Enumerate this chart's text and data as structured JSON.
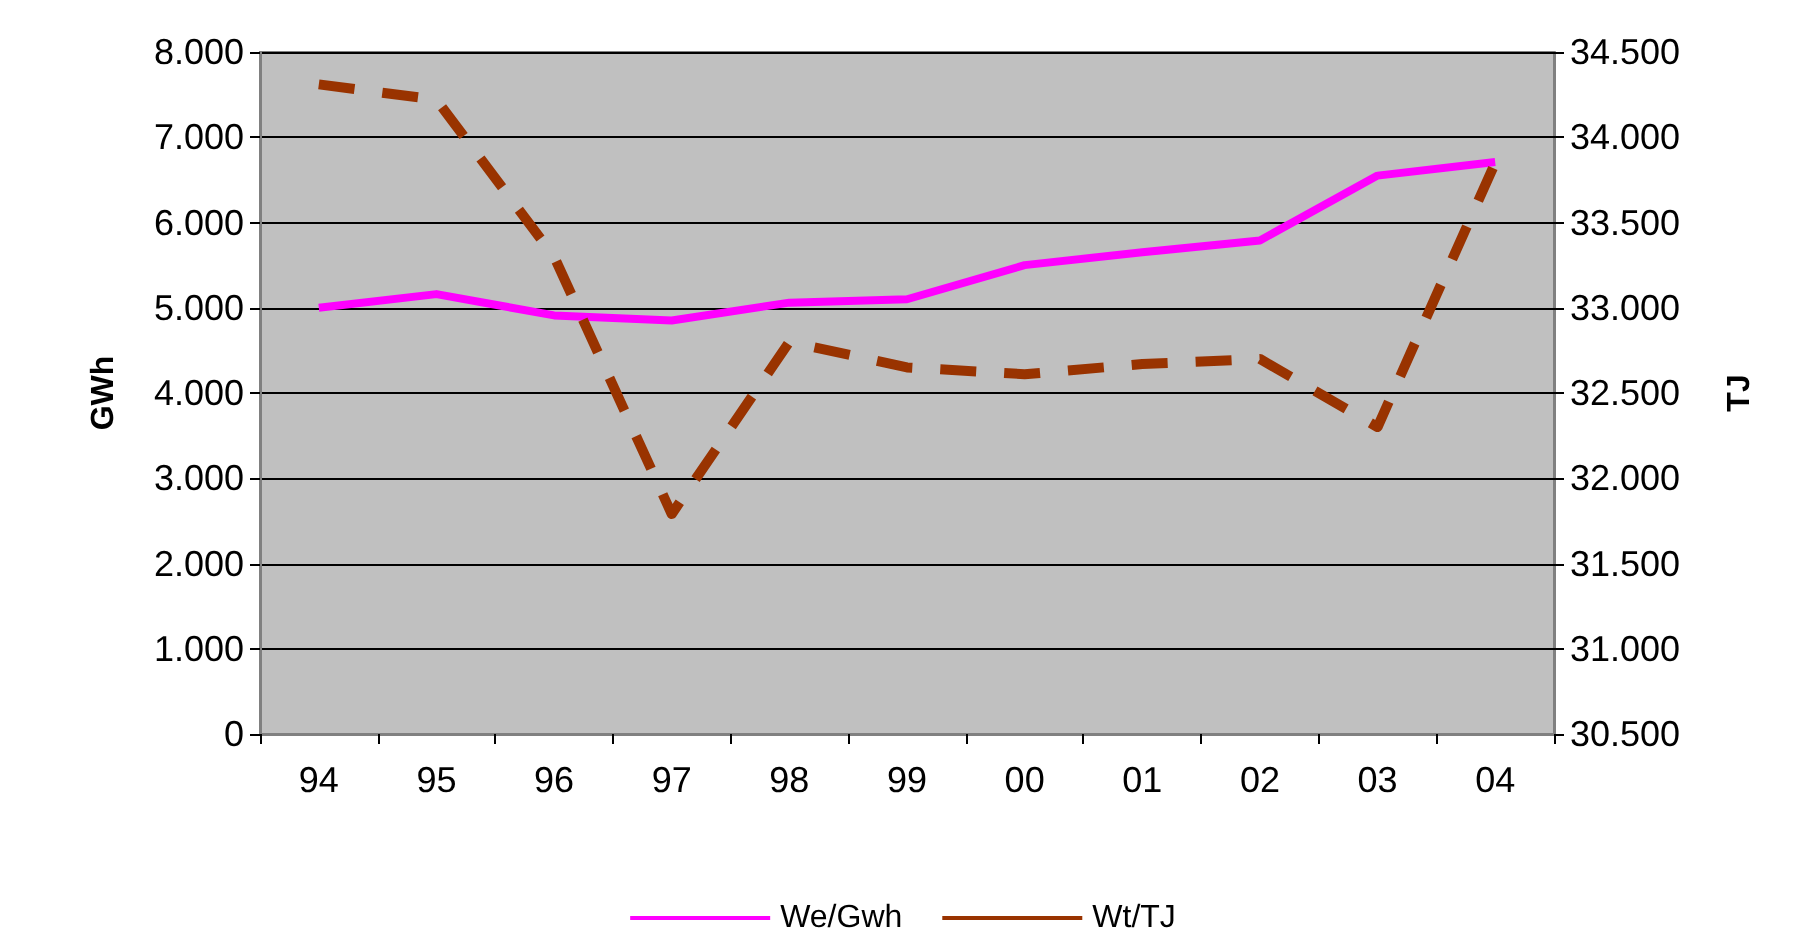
{
  "chart_data": {
    "type": "line",
    "categories": [
      "94",
      "95",
      "96",
      "97",
      "98",
      "99",
      "00",
      "01",
      "02",
      "03",
      "04"
    ],
    "ylabel": "GWh",
    "y2label": "TJ",
    "ylim": [
      0,
      8000
    ],
    "yticks": [
      {
        "value": 0,
        "label": "0"
      },
      {
        "value": 1000,
        "label": "1.000"
      },
      {
        "value": 2000,
        "label": "2.000"
      },
      {
        "value": 3000,
        "label": "3.000"
      },
      {
        "value": 4000,
        "label": "4.000"
      },
      {
        "value": 5000,
        "label": "5.000"
      },
      {
        "value": 6000,
        "label": "6.000"
      },
      {
        "value": 7000,
        "label": "7.000"
      },
      {
        "value": 8000,
        "label": "8.000"
      }
    ],
    "y2lim": [
      30500,
      34500
    ],
    "y2ticks": [
      {
        "value": 30500,
        "label": "30.500"
      },
      {
        "value": 31000,
        "label": "31.000"
      },
      {
        "value": 31500,
        "label": "31.500"
      },
      {
        "value": 32000,
        "label": "32.000"
      },
      {
        "value": 32500,
        "label": "32.500"
      },
      {
        "value": 33000,
        "label": "33.000"
      },
      {
        "value": 33500,
        "label": "33.500"
      },
      {
        "value": 34000,
        "label": "34.000"
      },
      {
        "value": 34500,
        "label": "34.500"
      }
    ],
    "series": [
      {
        "name": "We/Gwh",
        "color": "#ff00ff",
        "line_style": "solid",
        "values": [
          5000,
          5160,
          4910,
          4850,
          5060,
          5100,
          5500,
          5650,
          5790,
          6550,
          6710
        ]
      },
      {
        "name": "Wt/TJ",
        "color": "#993300",
        "line_style": "dashed",
        "axis": "y2",
        "values": [
          34310,
          34220,
          33300,
          31790,
          32800,
          32650,
          32610,
          32670,
          32700,
          32300,
          33850
        ]
      }
    ],
    "grid": "y",
    "legend": "bottom",
    "marker": "none"
  }
}
